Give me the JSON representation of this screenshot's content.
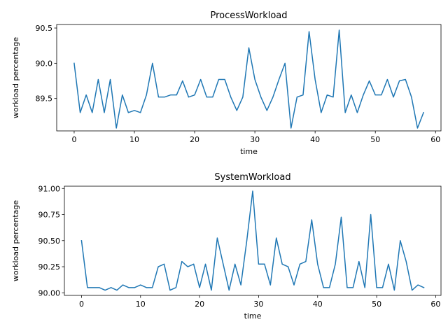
{
  "chart_data": [
    {
      "type": "line",
      "title": "ProcessWorkload",
      "xlabel": "time",
      "ylabel": "workload percentage",
      "xlim": [
        -2.9,
        60.9
      ],
      "ylim": [
        89.04,
        90.55
      ],
      "xticks": [
        0,
        10,
        20,
        30,
        40,
        50,
        60
      ],
      "xtick_labels": [
        "0",
        "10",
        "20",
        "30",
        "40",
        "50",
        "60"
      ],
      "yticks": [
        89.5,
        90.0,
        90.5
      ],
      "ytick_labels": [
        "89.5",
        "90.0",
        "90.5"
      ],
      "grid": false,
      "color": "#1f77b4",
      "x": [
        0,
        1,
        2,
        3,
        4,
        5,
        6,
        7,
        8,
        9,
        10,
        11,
        12,
        13,
        14,
        15,
        16,
        17,
        18,
        19,
        20,
        21,
        22,
        23,
        24,
        25,
        26,
        27,
        28,
        29,
        30,
        31,
        32,
        33,
        34,
        35,
        36,
        37,
        38,
        39,
        40,
        41,
        42,
        43,
        44,
        45,
        46,
        47,
        48,
        49,
        50,
        51,
        52,
        53,
        54,
        55,
        56,
        57,
        58
      ],
      "y": [
        90.0,
        89.3,
        89.55,
        89.3,
        89.77,
        89.3,
        89.77,
        89.08,
        89.55,
        89.3,
        89.33,
        89.3,
        89.55,
        90.0,
        89.52,
        89.52,
        89.55,
        89.55,
        89.75,
        89.52,
        89.55,
        89.77,
        89.52,
        89.52,
        89.77,
        89.77,
        89.52,
        89.33,
        89.52,
        90.22,
        89.77,
        89.52,
        89.33,
        89.52,
        89.77,
        90.0,
        89.08,
        89.52,
        89.55,
        90.45,
        89.77,
        89.3,
        89.55,
        89.52,
        90.47,
        89.3,
        89.55,
        89.3,
        89.55,
        89.75,
        89.55,
        89.55,
        89.77,
        89.52,
        89.75,
        89.77,
        89.52,
        89.08,
        89.3
      ]
    },
    {
      "type": "line",
      "title": "SystemWorkload",
      "xlabel": "time",
      "ylabel": "workload percentage",
      "xlim": [
        -2.9,
        60.9
      ],
      "ylim": [
        89.975,
        91.022
      ],
      "xticks": [
        0,
        10,
        20,
        30,
        40,
        50,
        60
      ],
      "xtick_labels": [
        "0",
        "10",
        "20",
        "30",
        "40",
        "50",
        "60"
      ],
      "yticks": [
        90.0,
        90.25,
        90.5,
        90.75,
        91.0
      ],
      "ytick_labels": [
        "90.00",
        "90.25",
        "90.50",
        "90.75",
        "91.00"
      ],
      "grid": false,
      "color": "#1f77b4",
      "x": [
        0,
        1,
        2,
        3,
        4,
        5,
        6,
        7,
        8,
        9,
        10,
        11,
        12,
        13,
        14,
        15,
        16,
        17,
        18,
        19,
        20,
        21,
        22,
        23,
        24,
        25,
        26,
        27,
        28,
        29,
        30,
        31,
        32,
        33,
        34,
        35,
        36,
        37,
        38,
        39,
        40,
        41,
        42,
        43,
        44,
        45,
        46,
        47,
        48,
        49,
        50,
        51,
        52,
        53,
        54,
        55,
        56,
        57,
        58
      ],
      "y": [
        90.5,
        90.05,
        90.05,
        90.05,
        90.025,
        90.05,
        90.025,
        90.075,
        90.05,
        90.05,
        90.075,
        90.05,
        90.05,
        90.25,
        90.275,
        90.025,
        90.05,
        90.3,
        90.25,
        90.275,
        90.05,
        90.275,
        90.025,
        90.525,
        90.275,
        90.025,
        90.275,
        90.075,
        90.5,
        90.975,
        90.275,
        90.275,
        90.075,
        90.525,
        90.275,
        90.25,
        90.075,
        90.275,
        90.3,
        90.7,
        90.275,
        90.05,
        90.05,
        90.275,
        90.725,
        90.05,
        90.05,
        90.3,
        90.05,
        90.75,
        90.05,
        90.05,
        90.275,
        90.025,
        90.5,
        90.3,
        90.025,
        90.075,
        90.05
      ]
    }
  ]
}
